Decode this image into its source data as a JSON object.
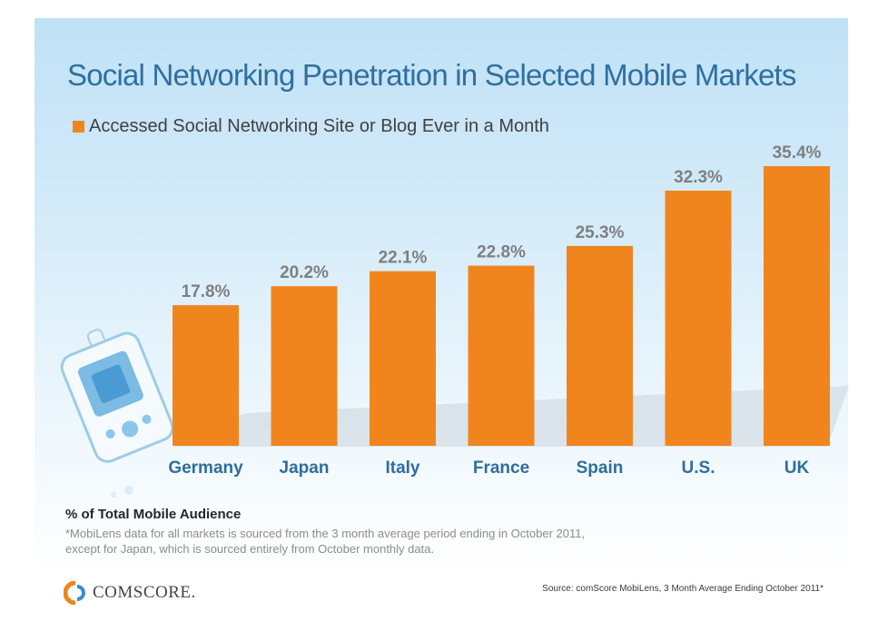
{
  "title": "Social Networking Penetration in Selected Mobile Markets",
  "legend": {
    "label": "Accessed Social Networking Site or Blog Ever in a Month",
    "color": "#f0851e"
  },
  "chart_data": {
    "type": "bar",
    "title": "Social Networking Penetration in Selected Mobile Markets",
    "categories": [
      "Germany",
      "Japan",
      "Italy",
      "France",
      "Spain",
      "U.S.",
      "UK"
    ],
    "series": [
      {
        "name": "Accessed Social Networking Site or Blog Ever in a Month",
        "values": [
          17.8,
          20.2,
          22.1,
          22.8,
          25.3,
          32.3,
          35.4
        ],
        "labels": [
          "17.8%",
          "20.2%",
          "22.1%",
          "22.8%",
          "25.3%",
          "32.3%",
          "35.4%"
        ]
      }
    ],
    "ylabel": "% of Total Mobile Audience",
    "xlabel": "",
    "ylim": [
      0,
      35.4
    ],
    "grid": false
  },
  "y_axis_label": "% of Total Mobile Audience",
  "footnote": "*MobiLens data for all markets is sourced from the 3 month average period ending in October 2011, except for Japan, which is sourced entirely from October monthly data.",
  "logo": {
    "text": "COMSCORE."
  },
  "source": "Source: comScore MobiLens, 3 Month Average Ending October 2011*",
  "colors": {
    "bar": "#f0851e",
    "title": "#2f6f9f",
    "category": "#2e6e9e",
    "value": "#7f7f7f"
  }
}
